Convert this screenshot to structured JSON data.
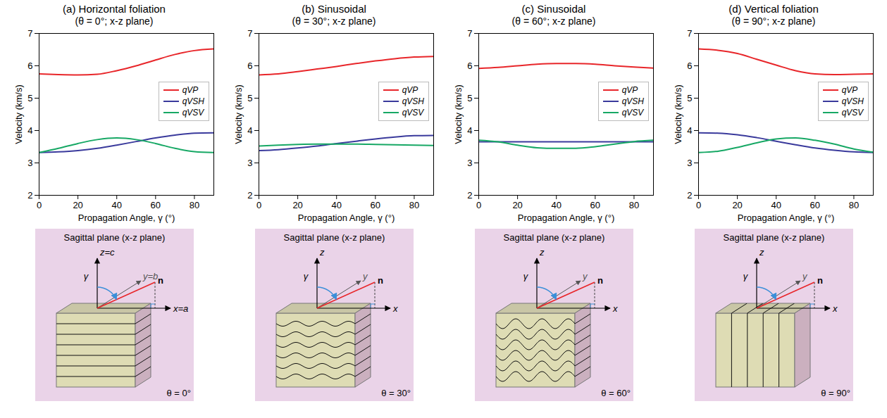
{
  "chart_data": [
    {
      "type": "line",
      "title": "(a) Horizontal foliation",
      "subtitle": "(θ = 0°; x-z plane)",
      "x_label": "Propagation Angle, γ (°)",
      "y_label": "Velocity (km/s)",
      "x": [
        0,
        10,
        20,
        30,
        40,
        50,
        60,
        70,
        80,
        90
      ],
      "xlim": [
        0,
        90
      ],
      "xticks": [
        0,
        20,
        40,
        60,
        80
      ],
      "ylim": [
        2,
        7
      ],
      "yticks": [
        2,
        3,
        4,
        5,
        6,
        7
      ],
      "grid": false,
      "legend": "right",
      "series": [
        {
          "name": "qVP",
          "color": "#e8262a",
          "values": [
            5.75,
            5.73,
            5.72,
            5.74,
            5.85,
            6.0,
            6.18,
            6.35,
            6.47,
            6.52
          ]
        },
        {
          "name": "qVSH",
          "color": "#3a3a9c",
          "values": [
            3.32,
            3.34,
            3.38,
            3.45,
            3.55,
            3.66,
            3.77,
            3.86,
            3.92,
            3.93
          ]
        },
        {
          "name": "qVSV",
          "color": "#17a865",
          "values": [
            3.32,
            3.45,
            3.6,
            3.72,
            3.77,
            3.72,
            3.6,
            3.45,
            3.35,
            3.32
          ]
        }
      ]
    },
    {
      "type": "line",
      "title": "(b) Sinusoidal",
      "subtitle": "(θ = 30°; x-z plane)",
      "x_label": "Propagation Angle, γ (°)",
      "y_label": "Velocity (km/s)",
      "x": [
        0,
        10,
        20,
        30,
        40,
        50,
        60,
        70,
        80,
        90
      ],
      "xlim": [
        0,
        90
      ],
      "xticks": [
        0,
        20,
        40,
        60,
        80
      ],
      "ylim": [
        2,
        7
      ],
      "yticks": [
        2,
        3,
        4,
        5,
        6,
        7
      ],
      "grid": false,
      "legend": "right",
      "series": [
        {
          "name": "qVP",
          "color": "#e8262a",
          "values": [
            5.72,
            5.75,
            5.82,
            5.9,
            5.98,
            6.07,
            6.15,
            6.22,
            6.27,
            6.29
          ]
        },
        {
          "name": "qVSH",
          "color": "#3a3a9c",
          "values": [
            3.38,
            3.41,
            3.46,
            3.52,
            3.6,
            3.67,
            3.74,
            3.8,
            3.84,
            3.85
          ]
        },
        {
          "name": "qVSV",
          "color": "#17a865",
          "values": [
            3.52,
            3.55,
            3.57,
            3.58,
            3.58,
            3.58,
            3.57,
            3.56,
            3.55,
            3.54
          ]
        }
      ]
    },
    {
      "type": "line",
      "title": "(c) Sinusoidal",
      "subtitle": "(θ = 60°; x-z plane)",
      "x_label": "Propagation Angle, γ (°)",
      "y_label": "Velocity (km/s)",
      "x": [
        0,
        10,
        20,
        30,
        40,
        50,
        60,
        70,
        80,
        90
      ],
      "xlim": [
        0,
        90
      ],
      "xticks": [
        0,
        20,
        40,
        60,
        80
      ],
      "ylim": [
        2,
        7
      ],
      "yticks": [
        2,
        3,
        4,
        5,
        6,
        7
      ],
      "grid": false,
      "legend": "right",
      "series": [
        {
          "name": "qVP",
          "color": "#e8262a",
          "values": [
            5.92,
            5.95,
            6.0,
            6.05,
            6.07,
            6.07,
            6.05,
            6.0,
            5.96,
            5.93
          ]
        },
        {
          "name": "qVSH",
          "color": "#3a3a9c",
          "values": [
            3.65,
            3.65,
            3.65,
            3.65,
            3.65,
            3.65,
            3.65,
            3.65,
            3.65,
            3.65
          ]
        },
        {
          "name": "qVSV",
          "color": "#17a865",
          "values": [
            3.7,
            3.65,
            3.55,
            3.47,
            3.45,
            3.45,
            3.5,
            3.58,
            3.66,
            3.7
          ]
        }
      ]
    },
    {
      "type": "line",
      "title": "(d) Vertical foliation",
      "subtitle": "(θ = 90°; x-z plane)",
      "x_label": "Propagation Angle, γ (°)",
      "y_label": "Velocity (km/s)",
      "x": [
        0,
        10,
        20,
        30,
        40,
        50,
        60,
        70,
        80,
        90
      ],
      "xlim": [
        0,
        90
      ],
      "xticks": [
        0,
        20,
        40,
        60,
        80
      ],
      "ylim": [
        2,
        7
      ],
      "yticks": [
        2,
        3,
        4,
        5,
        6,
        7
      ],
      "grid": false,
      "legend": "right",
      "series": [
        {
          "name": "qVP",
          "color": "#e8262a",
          "values": [
            6.52,
            6.48,
            6.38,
            6.2,
            6.02,
            5.85,
            5.75,
            5.73,
            5.74,
            5.75
          ]
        },
        {
          "name": "qVSH",
          "color": "#3a3a9c",
          "values": [
            3.93,
            3.92,
            3.87,
            3.78,
            3.67,
            3.56,
            3.46,
            3.39,
            3.34,
            3.32
          ]
        },
        {
          "name": "qVSV",
          "color": "#17a865",
          "values": [
            3.32,
            3.36,
            3.48,
            3.62,
            3.74,
            3.77,
            3.7,
            3.58,
            3.43,
            3.33
          ]
        }
      ]
    }
  ],
  "diagrams": [
    {
      "title": "Sagittal plane (x-z plane)",
      "z_label": "z=c",
      "x_label": "x=a",
      "y_label": "y=b",
      "angle_label": "γ",
      "normal_label": "n",
      "theta": 0,
      "theta_label": "θ = 0°"
    },
    {
      "title": "Sagittal plane (x-z plane)",
      "z_label": "z",
      "x_label": "x",
      "y_label": "y",
      "angle_label": "γ",
      "normal_label": "n",
      "theta": 30,
      "theta_label": "θ = 30°"
    },
    {
      "title": "Sagittal plane (x-z plane)",
      "z_label": "z",
      "x_label": "x",
      "y_label": "y",
      "angle_label": "γ",
      "normal_label": "n",
      "theta": 60,
      "theta_label": "θ = 60°"
    },
    {
      "title": "Sagittal plane (x-z plane)",
      "z_label": "z",
      "x_label": "x",
      "y_label": "y",
      "angle_label": "γ",
      "normal_label": "n",
      "theta": 90,
      "theta_label": "θ = 90°"
    }
  ]
}
